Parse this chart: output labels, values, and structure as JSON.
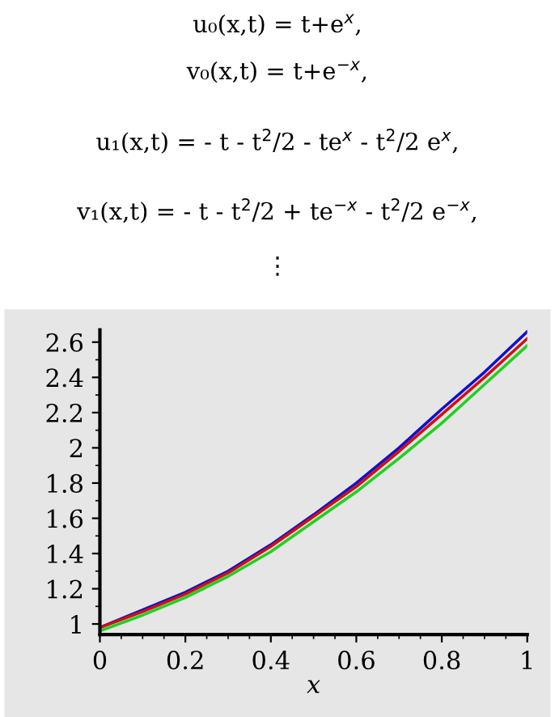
{
  "chart_data": {
    "type": "line",
    "xlabel": "x",
    "annotations": [
      "u₀(x,t) = t+e$^{x}$,",
      "v₀(x,t) = t+e$^{−x}$,",
      "u₁(x,t) = - t - t$^{2}$/2 - te$^{x}$ - t$^{2}$/2 e$^{x}$,",
      "v₁(x,t) = - t - t$^{2}$/2 + te$^{−x}$ - t$^{2}$/2 e$^{−x}$,",
      "⋮"
    ],
    "x": [
      0,
      0.1,
      0.2,
      0.3,
      0.4,
      0.5,
      0.6,
      0.7,
      0.8,
      0.9,
      1
    ],
    "series": [
      {
        "color": "#1010d0",
        "values": [
          0.98,
          1.08,
          1.18,
          1.3,
          1.45,
          1.62,
          1.8,
          2.0,
          2.22,
          2.43,
          2.66
        ]
      },
      {
        "color": "#d01010",
        "values": [
          0.98,
          1.07,
          1.17,
          1.29,
          1.44,
          1.61,
          1.78,
          1.98,
          2.19,
          2.4,
          2.62
        ]
      },
      {
        "color": "#20d020",
        "values": [
          0.96,
          1.05,
          1.15,
          1.27,
          1.41,
          1.58,
          1.75,
          1.94,
          2.14,
          2.36,
          2.58
        ]
      }
    ],
    "xlim": [
      0,
      1
    ],
    "ylim": [
      0.94,
      2.67
    ],
    "xticks": [
      0,
      0.2,
      0.4,
      0.6,
      0.8,
      1
    ],
    "yticks": [
      1,
      1.2,
      1.4,
      1.6,
      1.8,
      2,
      2.2,
      2.4,
      2.6
    ],
    "grid": false,
    "legend": false,
    "line_style": "solid",
    "marker": "none"
  }
}
